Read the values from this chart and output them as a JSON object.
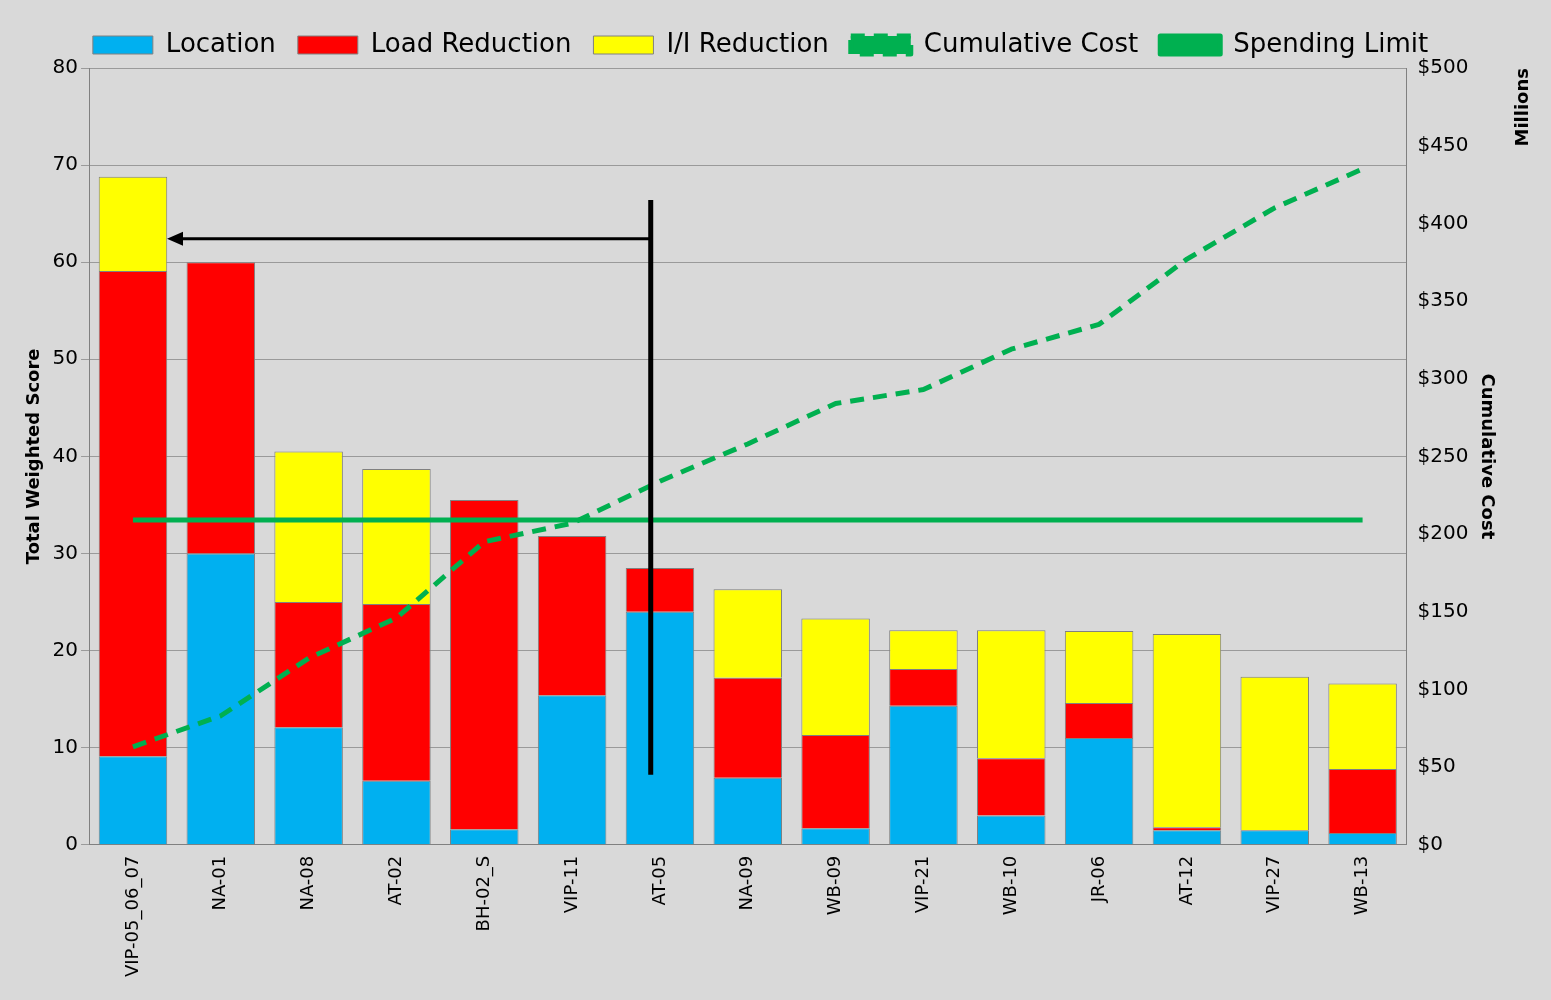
{
  "chart_data": {
    "type": "bar",
    "stacked": true,
    "categories": [
      "VIP-05_06_07",
      "NA-01",
      "NA-08",
      "AT-02",
      "BH-02_S",
      "VIP-11",
      "AT-05",
      "NA-09",
      "WB-09",
      "VIP-21",
      "WB-10",
      "JR-06",
      "AT-12",
      "VIP-27",
      "WB-13"
    ],
    "series": [
      {
        "name": "Location",
        "color": "#00b0f0",
        "values": [
          9.1,
          30.0,
          12.1,
          6.6,
          1.6,
          15.4,
          24.0,
          6.9,
          1.7,
          14.3,
          3.0,
          11.0,
          1.5,
          1.5,
          1.2
        ]
      },
      {
        "name": "Load Reduction",
        "color": "#ff0000",
        "values": [
          50.0,
          30.0,
          12.9,
          18.2,
          33.9,
          16.4,
          4.5,
          10.3,
          9.6,
          3.8,
          5.9,
          3.6,
          0.3,
          0,
          6.6
        ]
      },
      {
        "name": "I/I Reduction",
        "color": "#ffff00",
        "values": [
          9.7,
          0,
          15.5,
          13.9,
          0,
          0,
          0,
          9.1,
          12.0,
          4.0,
          13.2,
          7.4,
          19.9,
          15.8,
          8.8
        ]
      },
      {
        "name": "Cumulative Cost",
        "type": "line",
        "axis": "y2",
        "line_style": "dashed",
        "color": "#00b050",
        "values": [
          63,
          83,
          120,
          146,
          195,
          207,
          234,
          258,
          284,
          293,
          319,
          335,
          377,
          410,
          435
        ]
      },
      {
        "name": "Spending Limit",
        "type": "line",
        "axis": "y2",
        "line_style": "solid",
        "color": "#00b050",
        "values": [
          209,
          209,
          209,
          209,
          209,
          209,
          209,
          209,
          209,
          209,
          209,
          209,
          209,
          209,
          209
        ]
      }
    ],
    "ylabel": "Total Weighted Score",
    "y2label": "Cumulative Cost",
    "annotations": [
      "Millions"
    ],
    "ylim": [
      0,
      80
    ],
    "yticks": [
      0,
      10,
      20,
      30,
      40,
      50,
      60,
      70,
      80
    ],
    "y2lim": [
      0,
      500
    ],
    "y2ticks": [
      {
        "value": 0,
        "label": "$0"
      },
      {
        "value": 50,
        "label": "$50"
      },
      {
        "value": 100,
        "label": "$100"
      },
      {
        "value": 150,
        "label": "$150"
      },
      {
        "value": 200,
        "label": "$200"
      },
      {
        "value": 250,
        "label": "$250"
      },
      {
        "value": 300,
        "label": "$300"
      },
      {
        "value": 350,
        "label": "$350"
      },
      {
        "value": 400,
        "label": "$400"
      },
      {
        "value": 450,
        "label": "$450"
      },
      {
        "value": 500,
        "label": "$500"
      }
    ],
    "grid": "y",
    "legend": "top",
    "marker": "none"
  }
}
